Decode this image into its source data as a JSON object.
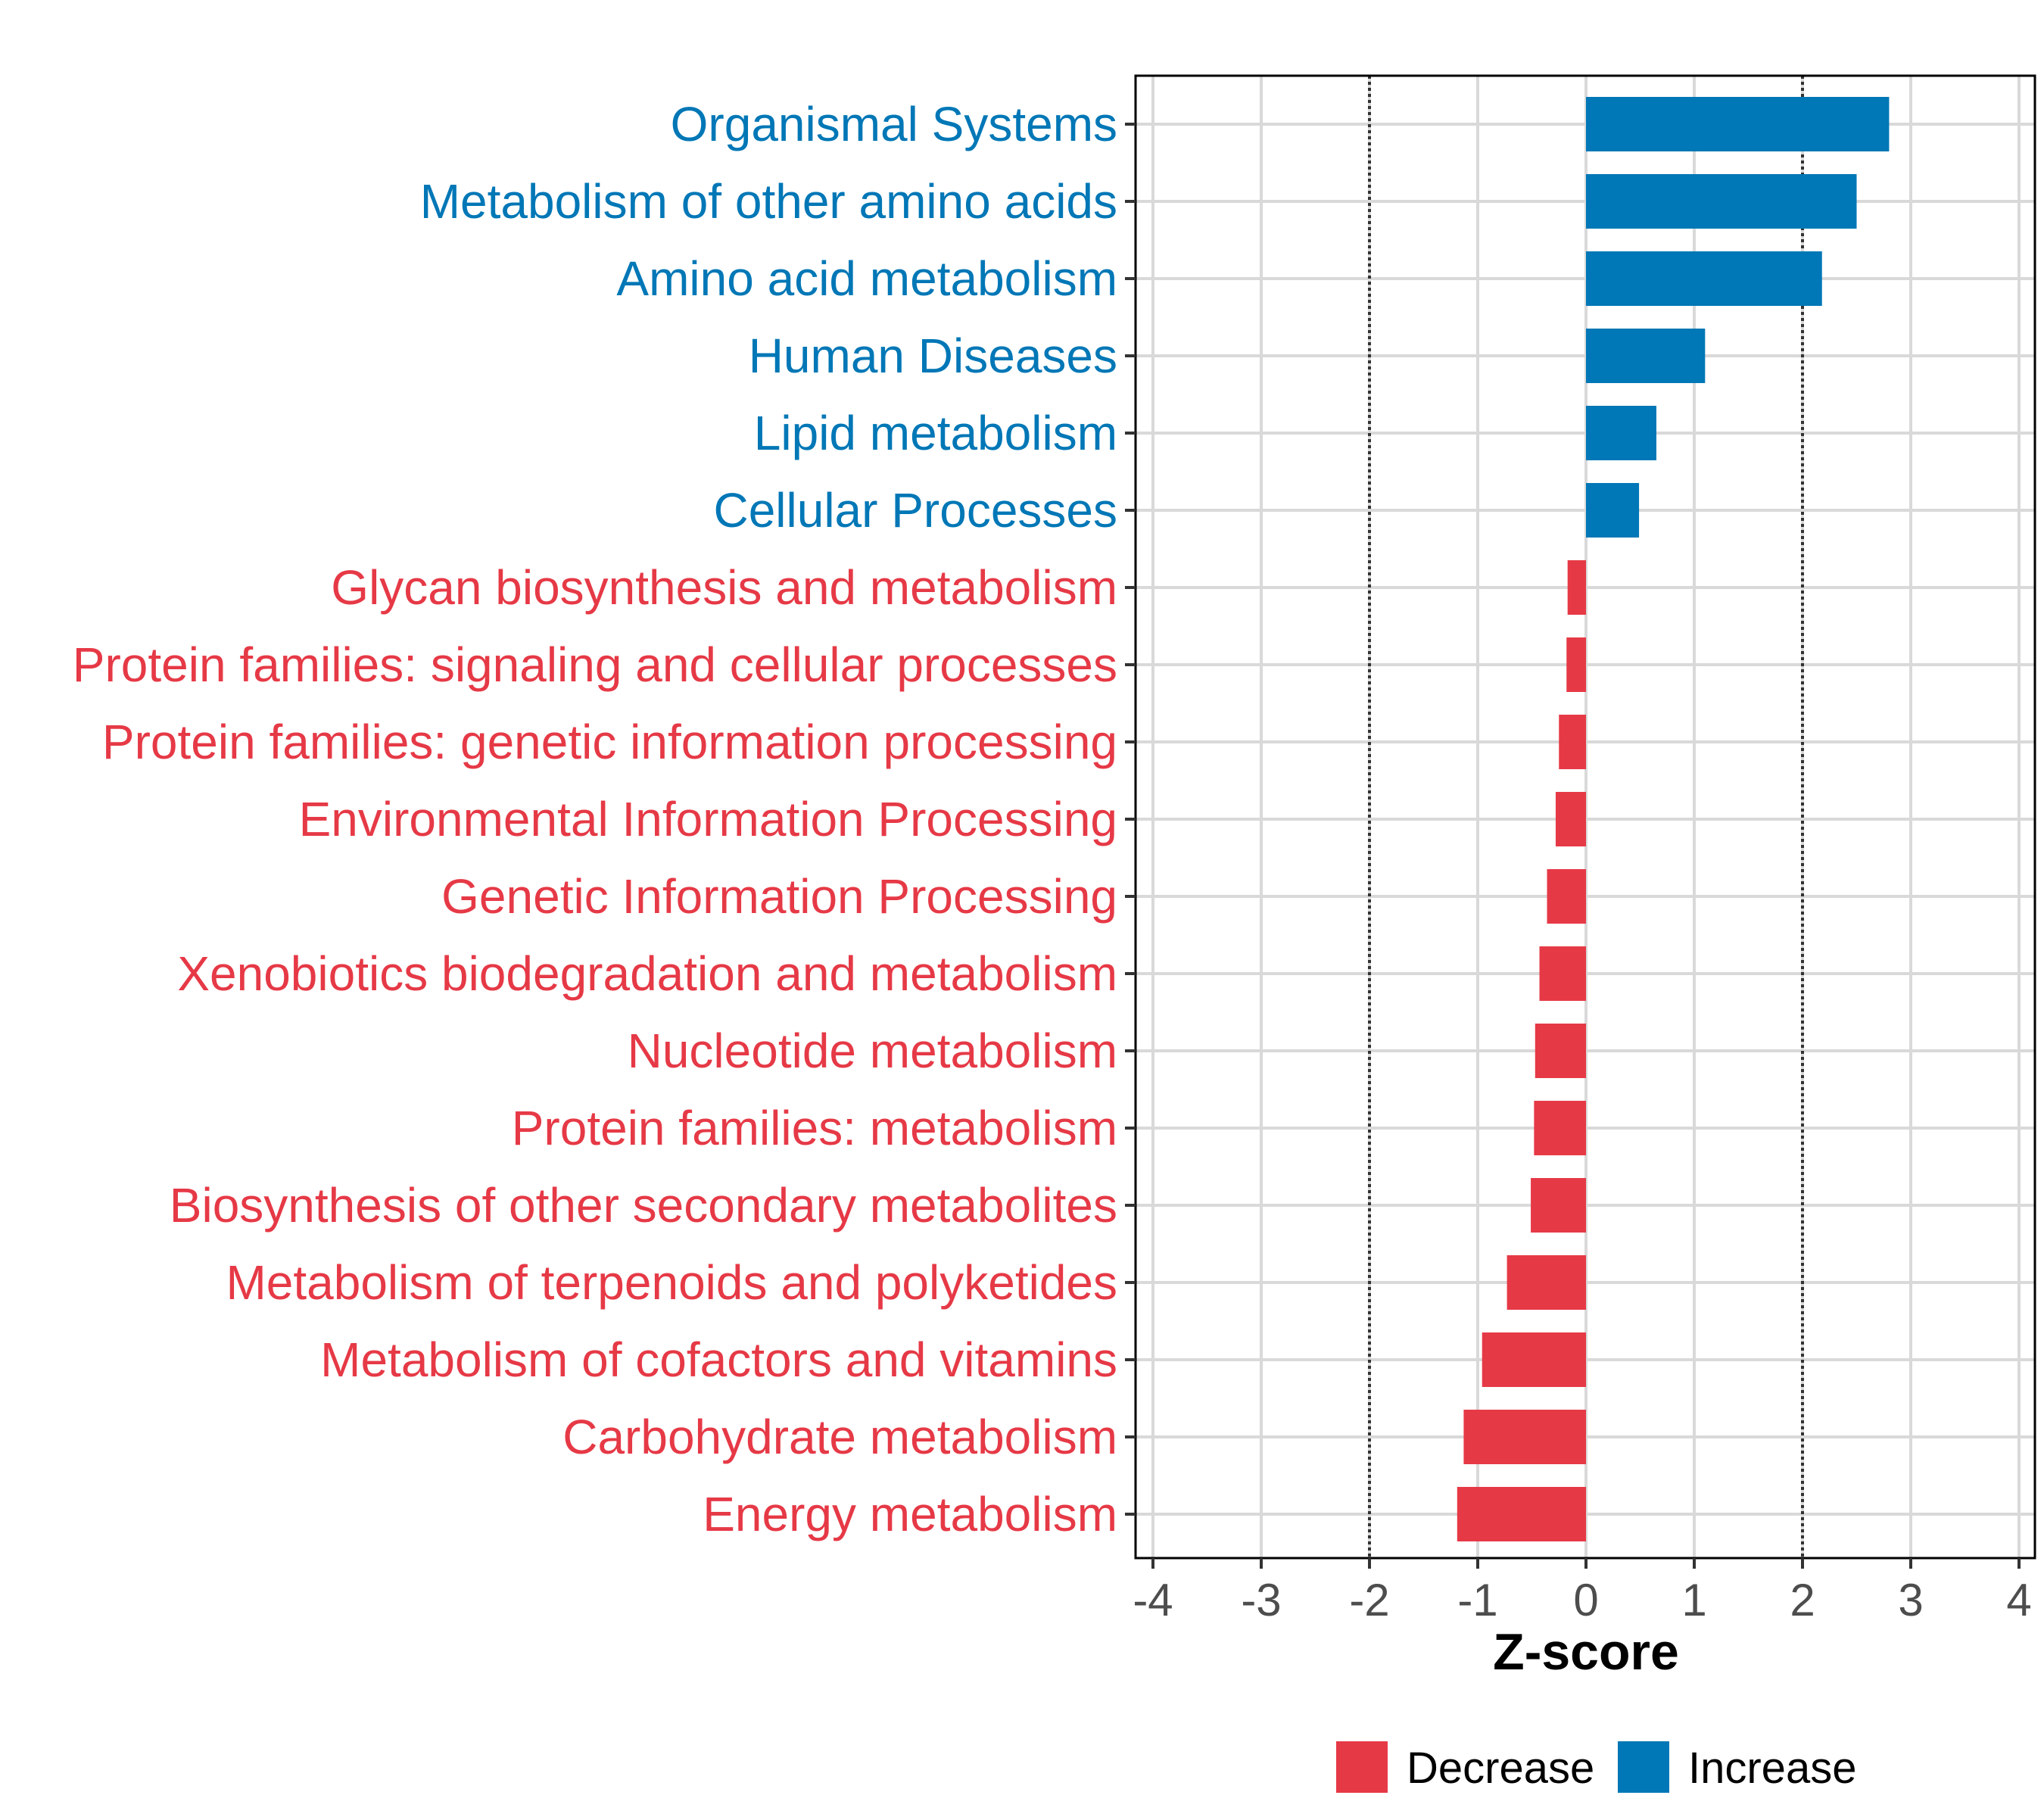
{
  "chart_data": {
    "type": "bar",
    "orientation": "horizontal",
    "xlabel": "Z-score",
    "xlim": [
      -4.15,
      4.15
    ],
    "xticks": [
      -4,
      -3,
      -2,
      -1,
      0,
      1,
      2,
      3,
      4
    ],
    "xtick_labels": [
      "-4",
      "-3",
      "-2",
      "-1",
      "0",
      "1",
      "2",
      "3",
      "4"
    ],
    "threshold_lines": [
      -2,
      2
    ],
    "grid": true,
    "legend_position": "bottom",
    "categories": [
      {
        "label": "Organismal Systems",
        "value": 2.8,
        "group": "Increase"
      },
      {
        "label": "Metabolism of other amino acids",
        "value": 2.5,
        "group": "Increase"
      },
      {
        "label": "Amino acid metabolism",
        "value": 2.18,
        "group": "Increase"
      },
      {
        "label": "Human Diseases",
        "value": 1.1,
        "group": "Increase"
      },
      {
        "label": "Lipid metabolism",
        "value": 0.65,
        "group": "Increase"
      },
      {
        "label": "Cellular Processes",
        "value": 0.49,
        "group": "Increase"
      },
      {
        "label": "Glycan biosynthesis and metabolism",
        "value": -0.17,
        "group": "Decrease"
      },
      {
        "label": "Protein families: signaling and cellular processes",
        "value": -0.18,
        "group": "Decrease"
      },
      {
        "label": "Protein families: genetic information processing",
        "value": -0.25,
        "group": "Decrease"
      },
      {
        "label": "Environmental Information Processing",
        "value": -0.28,
        "group": "Decrease"
      },
      {
        "label": "Genetic Information Processing",
        "value": -0.36,
        "group": "Decrease"
      },
      {
        "label": "Xenobiotics biodegradation and metabolism",
        "value": -0.43,
        "group": "Decrease"
      },
      {
        "label": "Nucleotide metabolism",
        "value": -0.47,
        "group": "Decrease"
      },
      {
        "label": "Protein families: metabolism",
        "value": -0.48,
        "group": "Decrease"
      },
      {
        "label": "Biosynthesis of other secondary metabolites",
        "value": -0.51,
        "group": "Decrease"
      },
      {
        "label": "Metabolism of terpenoids and polyketides",
        "value": -0.73,
        "group": "Decrease"
      },
      {
        "label": "Metabolism of cofactors and vitamins",
        "value": -0.96,
        "group": "Decrease"
      },
      {
        "label": "Carbohydrate metabolism",
        "value": -1.13,
        "group": "Decrease"
      },
      {
        "label": "Energy metabolism",
        "value": -1.19,
        "group": "Decrease"
      }
    ],
    "legend": [
      {
        "label": "Decrease",
        "color": "#e63946"
      },
      {
        "label": "Increase",
        "color": "#0077b6"
      }
    ]
  }
}
